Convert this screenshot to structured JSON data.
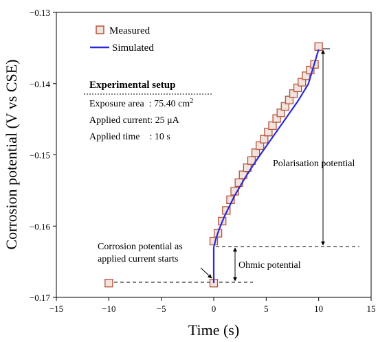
{
  "chart_data": {
    "type": "scatter",
    "xlabel": "Time (s)",
    "ylabel": "Corrosion potential (V vs CSE)",
    "xlim": [
      -15,
      15
    ],
    "ylim": [
      -0.17,
      -0.13
    ],
    "x_ticks": [
      -15,
      -10,
      -5,
      0,
      5,
      10,
      15
    ],
    "y_ticks": [
      -0.17,
      -0.16,
      -0.15,
      -0.14,
      -0.13
    ],
    "x_tick_labels": [
      "−15",
      "−10",
      "−5",
      "0",
      "5",
      "10",
      "15"
    ],
    "y_tick_labels": [
      "−0.17",
      "−0.16",
      "−0.15",
      "−0.14",
      "−0.13"
    ],
    "grid": false,
    "legend_position": "top-left",
    "series": [
      {
        "name": "Measured",
        "marker": "open-square",
        "color": "#b5533c",
        "x": [
          -10,
          0,
          0,
          0.4,
          0.8,
          1.2,
          1.6,
          2.0,
          2.4,
          2.8,
          3.2,
          3.6,
          4.0,
          4.4,
          4.8,
          5.2,
          5.6,
          6.0,
          6.4,
          6.8,
          7.2,
          7.6,
          8.0,
          8.4,
          8.8,
          9.2,
          9.6,
          10.0
        ],
        "y": [
          -0.168,
          -0.168,
          -0.1621,
          -0.161,
          -0.1593,
          -0.1578,
          -0.1563,
          -0.1551,
          -0.1539,
          -0.1528,
          -0.1518,
          -0.1508,
          -0.1497,
          -0.1487,
          -0.1478,
          -0.1468,
          -0.1459,
          -0.1449,
          -0.1441,
          -0.1432,
          -0.1423,
          -0.1414,
          -0.1406,
          -0.1398,
          -0.1389,
          -0.1381,
          -0.1373,
          -0.1348
        ]
      },
      {
        "name": "Simulated",
        "line": "solid",
        "color": "#2929d9",
        "x": [
          0,
          0,
          0.2,
          0.5,
          1,
          2,
          3,
          4,
          5,
          6,
          7,
          8,
          9,
          10
        ],
        "y": [
          -0.168,
          -0.163,
          -0.1618,
          -0.1605,
          -0.1587,
          -0.1557,
          -0.1532,
          -0.1509,
          -0.1488,
          -0.1467,
          -0.1446,
          -0.1425,
          -0.1401,
          -0.1352
        ]
      }
    ],
    "annotations": {
      "setup_title": "Experimental setup",
      "setup_lines": [
        {
          "label": "Exposure area",
          "sep": "  : ",
          "value": "75.40 cm",
          "sup": "2"
        },
        {
          "label": "Applied current",
          "sep": ": ",
          "value": "25 μA",
          "sup": ""
        },
        {
          "label": "Applied time",
          "sep": "    : ",
          "value": "10 s",
          "sup": ""
        }
      ],
      "polarisation_label": "Polarisation potential",
      "ohmic_label": "Ohmic potential",
      "start_label_lines": [
        "Corrosion potential as",
        "applied current starts"
      ]
    }
  }
}
